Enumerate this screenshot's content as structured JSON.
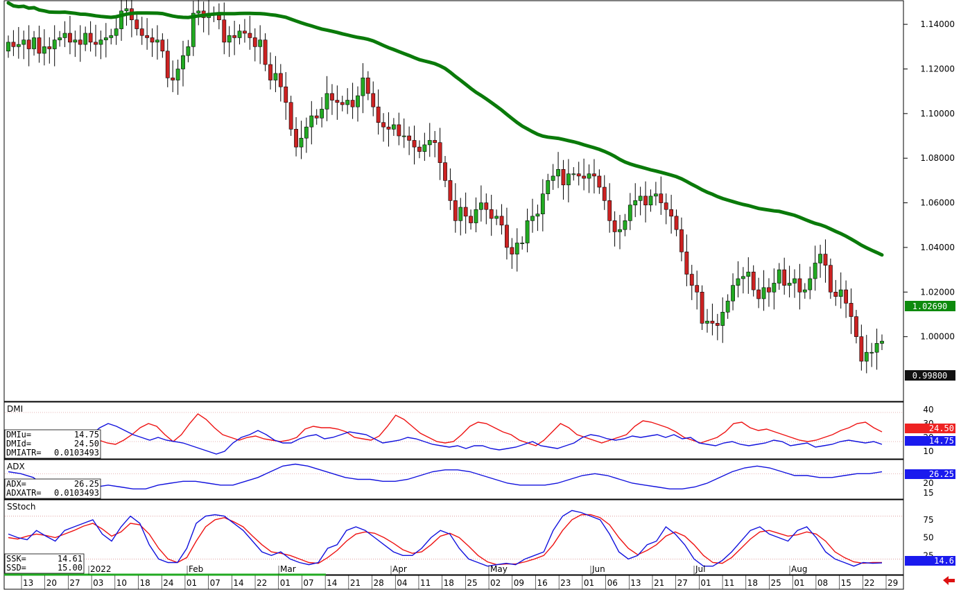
{
  "chart_data": {
    "type": "candlestick",
    "instrument_close_tag": "0.99800",
    "ma_tag": "1.02690",
    "price_axis": {
      "range": [
        0.971,
        1.1506
      ],
      "ticks": [
        "1.14000",
        "1.12000",
        "1.10000",
        "1.08000",
        "1.06000",
        "1.04000",
        "1.02000",
        "1.00000"
      ],
      "tick_values": [
        1.14,
        1.12,
        1.1,
        1.08,
        1.06,
        1.04,
        1.02,
        1.0
      ]
    },
    "colors": {
      "up": "#22aa22",
      "down": "#cc2222",
      "ma": "#0a7a0a",
      "blue": "#1010dd",
      "red": "#ee1111"
    },
    "month_labels": [
      {
        "label": "2022",
        "index": "0"
      },
      {
        "label": "Feb",
        "index": "19"
      },
      {
        "label": "Mar",
        "index": "38"
      },
      {
        "label": "Apr",
        "index": "61"
      },
      {
        "label": "May",
        "index": "81"
      },
      {
        "label": "Jun",
        "index": "103"
      },
      {
        "label": "Jul",
        "index": "124"
      },
      {
        "label": "Aug",
        "index": "147"
      }
    ],
    "date_ticks": [
      "13",
      "20",
      "27",
      "03",
      "10",
      "18",
      "24",
      "01",
      "07",
      "14",
      "22",
      "01",
      "07",
      "14",
      "21",
      "28",
      "04",
      "11",
      "18",
      "25",
      "02",
      "09",
      "16",
      "23",
      "01",
      "06",
      "13",
      "21",
      "27",
      "01",
      "11",
      "18",
      "25",
      "01",
      "08",
      "15",
      "22",
      "29"
    ],
    "candles_open": [
      1.128,
      1.132,
      1.13,
      1.131,
      1.133,
      1.129,
      1.134,
      1.127,
      1.13,
      1.129,
      1.133,
      1.134,
      1.136,
      1.132,
      1.133,
      1.131,
      1.136,
      1.132,
      1.131,
      1.133,
      1.134,
      1.135,
      1.138,
      1.146,
      1.147,
      1.142,
      1.138,
      1.135,
      1.134,
      1.132,
      1.133,
      1.128,
      1.116,
      1.115,
      1.12,
      1.126,
      1.13,
      1.145,
      1.146,
      1.143,
      1.145,
      1.144,
      1.142,
      1.132,
      1.135,
      1.134,
      1.137,
      1.136,
      1.134,
      1.13,
      1.133,
      1.122,
      1.115,
      1.118,
      1.112,
      1.105,
      1.093,
      1.085,
      1.089,
      1.094,
      1.099,
      1.098,
      1.102,
      1.109,
      1.106,
      1.105,
      1.104,
      1.106,
      1.103,
      1.108,
      1.116,
      1.109,
      1.103,
      1.096,
      1.094,
      1.093,
      1.095,
      1.09,
      1.09,
      1.088,
      1.085,
      1.083,
      1.086,
      1.088,
      1.087,
      1.078,
      1.07,
      1.061,
      1.052,
      1.058,
      1.054,
      1.051,
      1.057,
      1.06,
      1.057,
      1.053,
      1.054,
      1.05,
      1.04,
      1.037,
      1.042,
      1.042,
      1.052,
      1.054,
      1.055,
      1.064,
      1.07,
      1.072,
      1.075,
      1.068,
      1.073,
      1.073,
      1.072,
      1.071,
      1.073,
      1.072,
      1.067,
      1.061,
      1.052,
      1.047,
      1.048,
      1.052,
      1.059,
      1.061,
      1.063,
      1.059,
      1.063,
      1.064,
      1.06,
      1.057,
      1.054,
      1.048,
      1.038,
      1.028,
      1.023,
      1.02,
      1.006,
      1.007,
      1.006,
      1.005,
      1.011,
      1.016,
      1.023,
      1.026,
      1.027,
      1.029,
      1.021,
      1.017,
      1.022,
      1.02,
      1.024,
      1.03,
      1.023,
      1.024,
      1.026,
      1.02,
      1.021,
      1.026,
      1.033,
      1.037,
      1.032,
      1.02,
      1.018,
      1.021,
      1.015,
      1.009,
      1.0,
      0.989,
      0.993,
      0.993,
      0.997
    ],
    "candles_close": [
      1.132,
      1.13,
      1.131,
      1.133,
      1.129,
      1.134,
      1.127,
      1.13,
      1.129,
      1.133,
      1.134,
      1.136,
      1.132,
      1.133,
      1.131,
      1.136,
      1.132,
      1.131,
      1.133,
      1.134,
      1.135,
      1.138,
      1.146,
      1.147,
      1.142,
      1.138,
      1.135,
      1.134,
      1.132,
      1.133,
      1.128,
      1.116,
      1.115,
      1.12,
      1.126,
      1.13,
      1.145,
      1.146,
      1.143,
      1.145,
      1.144,
      1.142,
      1.132,
      1.135,
      1.134,
      1.137,
      1.136,
      1.134,
      1.13,
      1.133,
      1.122,
      1.115,
      1.118,
      1.112,
      1.105,
      1.093,
      1.085,
      1.089,
      1.094,
      1.099,
      1.098,
      1.102,
      1.109,
      1.106,
      1.105,
      1.104,
      1.106,
      1.103,
      1.108,
      1.116,
      1.109,
      1.103,
      1.096,
      1.094,
      1.093,
      1.095,
      1.09,
      1.09,
      1.088,
      1.085,
      1.083,
      1.086,
      1.088,
      1.087,
      1.078,
      1.07,
      1.061,
      1.052,
      1.058,
      1.054,
      1.051,
      1.057,
      1.06,
      1.057,
      1.053,
      1.054,
      1.05,
      1.04,
      1.037,
      1.042,
      1.042,
      1.052,
      1.054,
      1.055,
      1.064,
      1.07,
      1.072,
      1.075,
      1.068,
      1.073,
      1.073,
      1.072,
      1.071,
      1.073,
      1.072,
      1.067,
      1.061,
      1.052,
      1.047,
      1.048,
      1.052,
      1.059,
      1.061,
      1.063,
      1.059,
      1.063,
      1.064,
      1.06,
      1.057,
      1.054,
      1.048,
      1.038,
      1.028,
      1.023,
      1.02,
      1.006,
      1.007,
      1.006,
      1.005,
      1.011,
      1.016,
      1.023,
      1.026,
      1.027,
      1.029,
      1.021,
      1.017,
      1.022,
      1.02,
      1.024,
      1.03,
      1.023,
      1.024,
      1.026,
      1.02,
      1.021,
      1.026,
      1.033,
      1.037,
      1.032,
      1.02,
      1.018,
      1.021,
      1.015,
      1.009,
      1.0,
      0.989,
      0.993,
      0.993,
      0.997,
      0.998
    ],
    "dmi_axis": {
      "range": [
        5,
        45
      ],
      "ticks": [
        "40",
        "30",
        "20",
        "10"
      ],
      "tick_values": [
        40,
        30,
        20,
        10
      ],
      "guides": [
        38,
        17
      ]
    },
    "dmi_up": [
      12,
      13,
      15,
      20,
      18,
      22,
      20,
      15,
      14,
      18,
      22,
      27,
      30,
      28,
      25,
      22,
      20,
      18,
      20,
      18,
      17,
      16,
      14,
      12,
      10,
      8,
      10,
      16,
      20,
      22,
      25,
      22,
      18,
      16,
      16,
      19,
      21,
      22,
      19,
      20,
      22,
      24,
      23,
      22,
      19,
      16,
      17,
      18,
      20,
      19,
      17,
      15,
      14,
      13,
      14,
      12,
      14,
      14,
      12,
      11,
      12,
      13,
      15,
      17,
      14,
      13,
      12,
      14,
      16,
      20,
      22,
      21,
      19,
      18,
      19,
      21,
      20,
      21,
      22,
      20,
      22,
      19,
      20,
      16,
      15,
      14,
      16,
      17,
      15,
      14,
      15,
      16,
      18,
      17,
      14,
      15,
      16,
      13,
      14,
      15,
      17,
      18,
      17,
      16,
      17,
      15
    ],
    "dmi_down": [
      15,
      14,
      13,
      12,
      16,
      20,
      19,
      17,
      16,
      18,
      20,
      18,
      16,
      15,
      18,
      22,
      27,
      30,
      28,
      22,
      17,
      22,
      30,
      37,
      33,
      27,
      22,
      20,
      18,
      20,
      21,
      19,
      18,
      17,
      18,
      20,
      26,
      28,
      27,
      27,
      26,
      24,
      20,
      19,
      18,
      21,
      28,
      36,
      33,
      28,
      23,
      20,
      17,
      16,
      17,
      22,
      28,
      31,
      30,
      27,
      24,
      22,
      18,
      16,
      14,
      18,
      24,
      30,
      27,
      22,
      20,
      18,
      16,
      18,
      20,
      22,
      28,
      32,
      31,
      29,
      27,
      24,
      20,
      18,
      16,
      18,
      20,
      24,
      30,
      31,
      27,
      25,
      26,
      24,
      22,
      20,
      18,
      17,
      18,
      20,
      22,
      25,
      27,
      30,
      31,
      27,
      24
    ],
    "dmi_readouts": {
      "DMIu": "14.75",
      "DMId": "24.50",
      "DMIATR": "0.0103493"
    },
    "dmi_tags": {
      "red": "24.50",
      "blue": "14.75"
    },
    "adx_axis": {
      "range": [
        12,
        32
      ],
      "ticks": [
        "25",
        "20",
        "15"
      ],
      "tick_values": [
        25,
        20,
        15
      ],
      "guides": [
        25
      ]
    },
    "adx": [
      26,
      25,
      23,
      18,
      16,
      15,
      16,
      18,
      19,
      18,
      17,
      17,
      19,
      20,
      21,
      21,
      20,
      19,
      19,
      21,
      23,
      26,
      29,
      30,
      29,
      27,
      25,
      23,
      22,
      22,
      21,
      21,
      22,
      24,
      26,
      27,
      27,
      26,
      24,
      22,
      20,
      19,
      19,
      19,
      20,
      22,
      24,
      25,
      24,
      22,
      20,
      19,
      18,
      17,
      17,
      18,
      20,
      23,
      26,
      28,
      29,
      28,
      26,
      24,
      24,
      23,
      23,
      24,
      25,
      25,
      26
    ],
    "adx_readouts": {
      "ADX": "26.25",
      "ADXATR": "0.0103493"
    },
    "adx_tag": "26.25",
    "sstoch_axis": {
      "range": [
        0,
        100
      ],
      "ticks": [
        "75",
        "50",
        "25"
      ],
      "tick_values": [
        75,
        50,
        25
      ],
      "guides": [
        80,
        20
      ]
    },
    "ssk": [
      55,
      50,
      47,
      60,
      52,
      45,
      60,
      65,
      70,
      75,
      55,
      45,
      65,
      80,
      70,
      40,
      20,
      15,
      15,
      35,
      70,
      80,
      82,
      80,
      70,
      60,
      45,
      30,
      25,
      30,
      20,
      15,
      12,
      15,
      35,
      40,
      60,
      65,
      60,
      50,
      40,
      30,
      25,
      25,
      35,
      50,
      60,
      55,
      35,
      20,
      15,
      10,
      12,
      14,
      12,
      20,
      25,
      30,
      60,
      80,
      88,
      85,
      80,
      75,
      55,
      30,
      20,
      25,
      40,
      45,
      65,
      55,
      40,
      20,
      10,
      10,
      18,
      30,
      45,
      60,
      65,
      55,
      50,
      45,
      60,
      65,
      50,
      30,
      20,
      15,
      10,
      15,
      14,
      14.6
    ],
    "ssd": [
      50,
      48,
      52,
      55,
      53,
      50,
      55,
      60,
      66,
      70,
      62,
      52,
      58,
      70,
      68,
      55,
      35,
      20,
      15,
      22,
      45,
      65,
      75,
      78,
      72,
      65,
      52,
      40,
      30,
      28,
      25,
      20,
      15,
      14,
      22,
      32,
      45,
      55,
      58,
      56,
      50,
      42,
      33,
      28,
      30,
      40,
      52,
      56,
      50,
      38,
      25,
      16,
      12,
      13,
      13,
      16,
      20,
      25,
      40,
      60,
      75,
      82,
      82,
      78,
      68,
      50,
      35,
      26,
      32,
      40,
      52,
      58,
      52,
      40,
      25,
      15,
      14,
      22,
      35,
      48,
      58,
      60,
      56,
      52,
      54,
      58,
      55,
      45,
      30,
      22,
      16,
      14,
      15,
      15
    ],
    "sstoch_readouts": {
      "SSK": "14.61",
      "SSD": "15.00"
    },
    "sstoch_tag": "14.6",
    "panels": {
      "dmi": "DMI",
      "adx": "ADX",
      "sstoch": "SStoch"
    }
  }
}
